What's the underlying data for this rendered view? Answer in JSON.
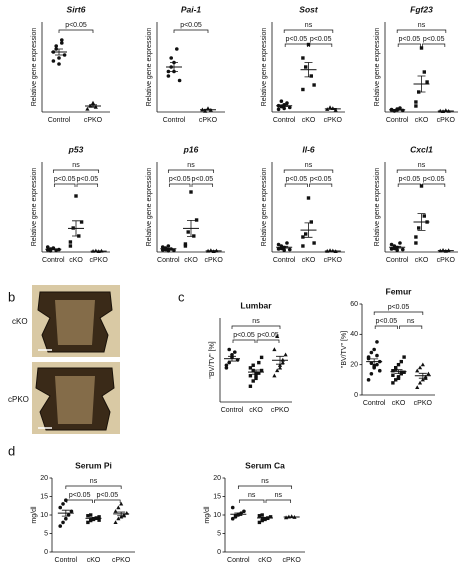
{
  "panel_labels": {
    "b": "b",
    "c": "c",
    "d": "d"
  },
  "image_panel": {
    "labels": [
      "cKO",
      "cPKO"
    ]
  },
  "chart_data": [
    {
      "type": "dot",
      "title": "Sirt6",
      "italic_title": true,
      "y_label": "Relative gene expression",
      "categories": [
        "Control",
        "cPKO"
      ],
      "markers": [
        "circle",
        "triangle"
      ],
      "values": [
        [
          1.0,
          1.1,
          0.9,
          1.2,
          0.95,
          0.85,
          1.05,
          0.8,
          1.15
        ],
        [
          0.05,
          0.1,
          0.15,
          0.08
        ]
      ],
      "means": [
        1.0,
        0.1
      ],
      "errors": [
        0.05,
        0.02
      ],
      "ylim": [
        0,
        1.5
      ],
      "comparisons": [
        {
          "groups": [
            "Control",
            "cPKO"
          ],
          "label": "p<0.05"
        }
      ]
    },
    {
      "type": "dot",
      "title": "Pai-1",
      "italic_title": true,
      "y_label": "Relative gene expression",
      "categories": [
        "Control",
        "cPKO"
      ],
      "markers": [
        "circle",
        "triangle"
      ],
      "values": [
        [
          0.9,
          1.0,
          1.1,
          1.4,
          0.7,
          0.8,
          1.2,
          0.9
        ],
        [
          0.05,
          0.02,
          0.08,
          0.04
        ]
      ],
      "means": [
        1.0,
        0.05
      ],
      "errors": [
        0.1,
        0.01
      ],
      "ylim": [
        0,
        2
      ],
      "comparisons": [
        {
          "groups": [
            "Control",
            "cPKO"
          ],
          "label": "p<0.05"
        }
      ]
    },
    {
      "type": "dot",
      "title": "Sost",
      "italic_title": true,
      "y_label": "Relative gene expression",
      "categories": [
        "Control",
        "cKO",
        "cPKO"
      ],
      "markers": [
        "circle",
        "square",
        "triangle"
      ],
      "values": [
        [
          0.3,
          0.6,
          0.8,
          1.0,
          0.5,
          0.7,
          1.2,
          0.4
        ],
        [
          2.5,
          5,
          7.5,
          4,
          3,
          6
        ],
        [
          0.3,
          0.5,
          0.4,
          0.2
        ]
      ],
      "means": [
        0.7,
        4.7,
        0.35
      ],
      "errors": [
        0.1,
        0.8,
        0.05
      ],
      "ylim": [
        0,
        10
      ],
      "comparisons": [
        {
          "groups": [
            "Control",
            "cPKO"
          ],
          "label": "ns"
        },
        {
          "groups": [
            "Control",
            "cKO"
          ],
          "label": "p<0.05"
        },
        {
          "groups": [
            "cKO",
            "cPKO"
          ],
          "label": "p<0.05"
        }
      ]
    },
    {
      "type": "dot",
      "title": "Fgf23",
      "italic_title": true,
      "y_label": "Relative gene expression",
      "categories": [
        "Control",
        "cKO",
        "cPKO"
      ],
      "markers": [
        "circle",
        "square",
        "triangle"
      ],
      "values": [
        [
          1,
          0.5,
          1.5,
          2,
          0.8,
          1.2,
          0.6,
          1
        ],
        [
          5,
          10,
          32,
          20,
          15,
          3
        ],
        [
          0.5,
          0.3,
          0.8,
          0.4
        ]
      ],
      "means": [
        1.1,
        14,
        0.5
      ],
      "errors": [
        0.2,
        4,
        0.1
      ],
      "ylim": [
        0,
        45
      ],
      "comparisons": [
        {
          "groups": [
            "Control",
            "cPKO"
          ],
          "label": "ns"
        },
        {
          "groups": [
            "Control",
            "cKO"
          ],
          "label": "p<0.05"
        },
        {
          "groups": [
            "cKO",
            "cPKO"
          ],
          "label": "p<0.05"
        }
      ]
    },
    {
      "type": "dot",
      "title": "p53",
      "italic_title": true,
      "y_label": "Relative gene expression",
      "categories": [
        "Control",
        "cKO",
        "cPKO"
      ],
      "markers": [
        "circle",
        "square",
        "triangle"
      ],
      "values": [
        [
          1,
          1.5,
          2,
          0.8,
          1.2,
          2.5,
          0.6,
          1.8
        ],
        [
          5,
          12,
          28,
          8,
          15,
          3
        ],
        [
          0.4,
          0.6,
          0.3,
          0.5
        ]
      ],
      "means": [
        1.4,
        11.8,
        0.45
      ],
      "errors": [
        0.2,
        3.8,
        0.1
      ],
      "ylim": [
        0,
        45
      ],
      "comparisons": [
        {
          "groups": [
            "Control",
            "cPKO"
          ],
          "label": "ns"
        },
        {
          "groups": [
            "Control",
            "cKO"
          ],
          "label": "p<0.05"
        },
        {
          "groups": [
            "cKO",
            "cPKO"
          ],
          "label": "p<0.05"
        }
      ]
    },
    {
      "type": "dot",
      "title": "p16",
      "italic_title": true,
      "y_label": "Relative gene expression",
      "categories": [
        "Control",
        "cKO",
        "cPKO"
      ],
      "markers": [
        "circle",
        "square",
        "triangle"
      ],
      "values": [
        [
          1,
          2,
          3,
          1.5,
          0.8,
          2.5,
          1.2,
          0.6
        ],
        [
          4,
          10,
          30,
          8,
          16,
          3
        ],
        [
          0.5,
          0.8,
          0.3,
          0.6
        ]
      ],
      "means": [
        1.6,
        11.8,
        0.55
      ],
      "errors": [
        0.3,
        4,
        0.1
      ],
      "ylim": [
        0,
        45
      ],
      "comparisons": [
        {
          "groups": [
            "Control",
            "cPKO"
          ],
          "label": "ns"
        },
        {
          "groups": [
            "Control",
            "cKO"
          ],
          "label": "p<0.05"
        },
        {
          "groups": [
            "cKO",
            "cPKO"
          ],
          "label": "p<0.05"
        }
      ]
    },
    {
      "type": "dot",
      "title": "Il-6",
      "italic_title": true,
      "y_label": "Relative gene expression",
      "categories": [
        "Control",
        "cKO",
        "cPKO"
      ],
      "markers": [
        "circle",
        "square",
        "triangle"
      ],
      "values": [
        [
          1,
          2,
          1.5,
          3,
          0.8,
          2.5,
          1.2,
          0.6
        ],
        [
          2,
          6,
          18,
          10,
          3,
          5
        ],
        [
          0.3,
          0.5,
          0.4,
          0.2
        ]
      ],
      "means": [
        1.6,
        7.3,
        0.35
      ],
      "errors": [
        0.3,
        2.4,
        0.05
      ],
      "ylim": [
        0,
        30
      ],
      "comparisons": [
        {
          "groups": [
            "Control",
            "cPKO"
          ],
          "label": "ns"
        },
        {
          "groups": [
            "Control",
            "cKO"
          ],
          "label": "p<0.05"
        },
        {
          "groups": [
            "cKO",
            "cPKO"
          ],
          "label": "p<0.05"
        }
      ]
    },
    {
      "type": "dot",
      "title": "Cxcl1",
      "italic_title": true,
      "y_label": "Relative gene expression",
      "categories": [
        "Control",
        "cKO",
        "cPKO"
      ],
      "markers": [
        "circle",
        "square",
        "triangle"
      ],
      "values": [
        [
          1,
          2,
          1.5,
          3,
          0.8,
          2.5,
          1.2,
          0.6
        ],
        [
          3,
          8,
          22,
          12,
          10,
          5
        ],
        [
          0.4,
          0.6,
          0.3,
          0.5
        ]
      ],
      "means": [
        1.6,
        10,
        0.45
      ],
      "errors": [
        0.3,
        2.8,
        0.1
      ],
      "ylim": [
        0,
        30
      ],
      "comparisons": [
        {
          "groups": [
            "Control",
            "cPKO"
          ],
          "label": "ns"
        },
        {
          "groups": [
            "Control",
            "cKO"
          ],
          "label": "p<0.05"
        },
        {
          "groups": [
            "cKO",
            "cPKO"
          ],
          "label": "p<0.05"
        }
      ]
    },
    {
      "type": "dot",
      "title": "Lumbar",
      "italic_title": false,
      "y_label": "\"BV/TV\" [%]",
      "categories": [
        "Control",
        "cKO",
        "cPKO"
      ],
      "markers": [
        "circle",
        "square",
        "triangle"
      ],
      "values": [
        [
          13,
          15,
          17,
          19,
          16,
          14,
          20,
          18
        ],
        [
          6,
          8,
          10,
          11,
          12,
          13,
          14,
          9,
          15,
          17,
          10,
          12,
          11
        ],
        [
          10,
          12,
          14,
          16,
          18,
          20,
          25,
          13,
          15
        ]
      ],
      "means": [
        16.5,
        11.4,
        15.9
      ],
      "errors": [
        0.9,
        0.8,
        1.5
      ],
      "ylim": [
        0,
        32
      ],
      "comparisons": [
        {
          "groups": [
            "Control",
            "cPKO"
          ],
          "label": "ns"
        },
        {
          "groups": [
            "Control",
            "cKO"
          ],
          "label": "p<0.05"
        },
        {
          "groups": [
            "cKO",
            "cPKO"
          ],
          "label": "p<0.05"
        }
      ]
    },
    {
      "type": "dot",
      "title": "Femur",
      "italic_title": false,
      "y_label": "\"BV/TV\" [%]",
      "categories": [
        "Control",
        "cKO",
        "cPKO"
      ],
      "markers": [
        "circle",
        "square",
        "triangle"
      ],
      "values": [
        [
          10,
          14,
          18,
          20,
          22,
          25,
          28,
          30,
          35,
          16,
          24,
          21,
          19,
          26
        ],
        [
          8,
          10,
          12,
          14,
          15,
          16,
          18,
          20,
          22,
          25,
          13,
          17,
          11,
          15
        ],
        [
          5,
          8,
          10,
          12,
          14,
          16,
          18,
          20,
          11
        ]
      ],
      "means": [
        22,
        15.4,
        12.7
      ],
      "errors": [
        1.8,
        1.3,
        1.6
      ],
      "ylim": [
        0,
        60
      ],
      "yticks": [
        0,
        20,
        40,
        60
      ],
      "comparisons": [
        {
          "groups": [
            "Control",
            "cPKO"
          ],
          "label": "p<0.05"
        },
        {
          "groups": [
            "Control",
            "cKO"
          ],
          "label": "p<0.05"
        },
        {
          "groups": [
            "cKO",
            "cPKO"
          ],
          "label": "ns"
        }
      ]
    },
    {
      "type": "dot",
      "title": "Serum Pi",
      "italic_title": false,
      "y_label": "mg/dl",
      "categories": [
        "Control",
        "cKO",
        "cPKO"
      ],
      "markers": [
        "circle",
        "square",
        "triangle"
      ],
      "values": [
        [
          7,
          8,
          9,
          10,
          11,
          12,
          13,
          14
        ],
        [
          8,
          8.5,
          9,
          9.2,
          9.5,
          9.8,
          10,
          8.8,
          9.1,
          8.6
        ],
        [
          8,
          9,
          9.5,
          10,
          10.5,
          11,
          12,
          13,
          9.8
        ]
      ],
      "means": [
        10.5,
        9.1,
        10.3
      ],
      "errors": [
        0.8,
        0.2,
        0.5
      ],
      "ylim": [
        0,
        20
      ],
      "yticks": [
        0,
        5,
        10,
        15,
        20
      ],
      "comparisons": [
        {
          "groups": [
            "Control",
            "cPKO"
          ],
          "label": "ns"
        },
        {
          "groups": [
            "Control",
            "cKO"
          ],
          "label": "p<0.05"
        },
        {
          "groups": [
            "cKO",
            "cPKO"
          ],
          "label": "p<0.05"
        }
      ]
    },
    {
      "type": "dot",
      "title": "Serum Ca",
      "italic_title": false,
      "y_label": "mg/dl",
      "categories": [
        "Control",
        "cKO",
        "cPKO"
      ],
      "markers": [
        "circle",
        "square",
        "triangle"
      ],
      "values": [
        [
          9,
          9.5,
          10,
          10.5,
          11,
          12,
          9.8,
          10.2
        ],
        [
          8,
          8.5,
          9,
          9.2,
          9.5,
          9.8,
          10,
          8.8,
          9.1
        ],
        [
          9.3,
          9.5,
          9.6,
          9.4
        ]
      ],
      "means": [
        10.2,
        9.2,
        9.45
      ],
      "errors": [
        0.35,
        0.2,
        0.05
      ],
      "ylim": [
        0,
        20
      ],
      "yticks": [
        0,
        5,
        10,
        15,
        20
      ],
      "comparisons": [
        {
          "groups": [
            "Control",
            "cPKO"
          ],
          "label": "ns"
        },
        {
          "groups": [
            "Control",
            "cKO"
          ],
          "label": "ns"
        },
        {
          "groups": [
            "cKO",
            "cPKO"
          ],
          "label": "ns"
        }
      ]
    }
  ]
}
